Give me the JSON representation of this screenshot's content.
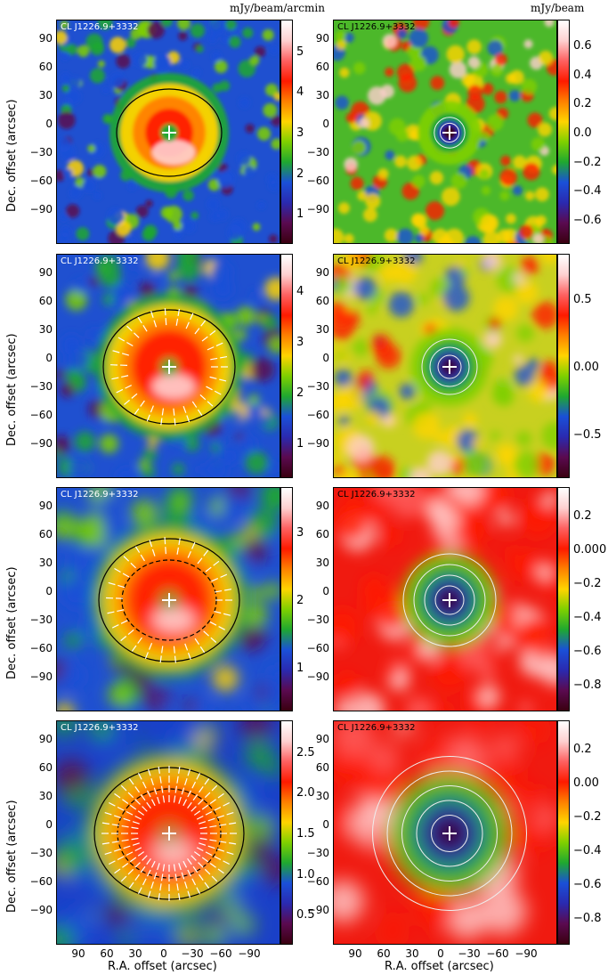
{
  "units": {
    "left": "mJy/beam/arcmin",
    "right": "mJy/beam"
  },
  "panel_title": "CL J1226.9+3332",
  "axes": {
    "ylabel": "Dec. offset (arcsec)",
    "xlabel": "R.A. offset (arcsec)",
    "yticks": [
      "90",
      "60",
      "30",
      "0",
      "−30",
      "−60",
      "−90"
    ],
    "xticks": [
      "90",
      "60",
      "30",
      "0",
      "−30",
      "−60",
      "−90"
    ]
  },
  "colorbars": {
    "left": [
      [
        "5",
        "4",
        "3",
        "2",
        "1"
      ],
      [
        "4",
        "3",
        "2",
        "1"
      ],
      [
        "3",
        "2",
        "1"
      ],
      [
        "2.5",
        "2.0",
        "1.5",
        "1.0",
        "0.5"
      ]
    ],
    "right": [
      [
        "0.6",
        "0.4",
        "0.2",
        "0.0",
        "−0.2",
        "−0.4",
        "−0.6"
      ],
      [
        "0.5",
        "0.00",
        "−0.5"
      ],
      [
        "0.2",
        "0.000",
        "−0.2",
        "−0.4",
        "−0.6",
        "−0.8"
      ],
      [
        "0.2",
        "0.00",
        "−0.2",
        "−0.4",
        "−0.6",
        "−0.8"
      ]
    ]
  },
  "colors": {
    "colormap": [
      "#3a0010",
      "#5a0a50",
      "#2a2ab0",
      "#1a50d8",
      "#1fa830",
      "#7fd000",
      "#ffd400",
      "#ff8000",
      "#ff1a00",
      "#ff6060",
      "#ffd0d0",
      "#ffffff"
    ],
    "marker": "#ffffff"
  }
}
